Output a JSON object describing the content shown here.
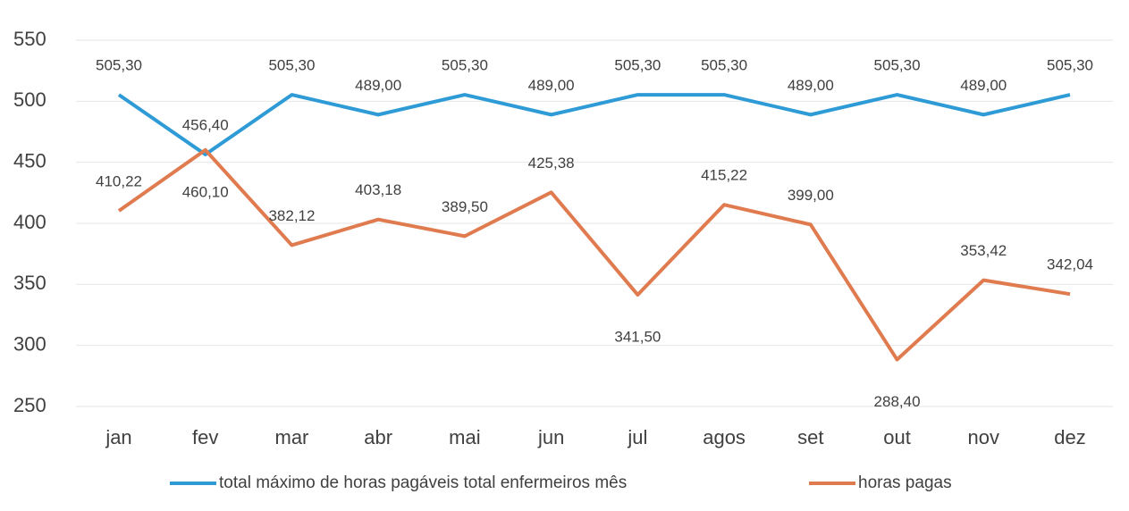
{
  "chart_data": {
    "type": "line",
    "categories": [
      "jan",
      "fev",
      "mar",
      "abr",
      "mai",
      "jun",
      "jul",
      "agos",
      "set",
      "out",
      "nov",
      "dez"
    ],
    "series": [
      {
        "name": "total máximo de horas pagáveis total enfermeiros mês",
        "color": "#2e9bd6",
        "values": [
          505.3,
          456.4,
          505.3,
          489,
          505.3,
          489,
          505.3,
          505.3,
          489,
          505.3,
          489,
          505.3
        ],
        "value_labels": [
          "505,30",
          "456,40",
          "505,30",
          "489,00",
          "505,30",
          "489,00",
          "505,30",
          "505,30",
          "489,00",
          "505,30",
          "489,00",
          "505,30"
        ]
      },
      {
        "name": "horas pagas",
        "color": "#e07b4f",
        "values": [
          410.22,
          460.1,
          382.12,
          403.18,
          389.5,
          425.38,
          341.5,
          415.22,
          399,
          288.4,
          353.42,
          342.04
        ],
        "value_labels": [
          "410,22",
          "460,10",
          "382,12",
          "403,18",
          "389,50",
          "425,38",
          "341,50",
          "415,22",
          "399,00",
          "288,40",
          "353,42",
          "342,04"
        ]
      }
    ],
    "ylim": [
      250,
      550
    ],
    "yticks": [
      250,
      300,
      350,
      400,
      450,
      500,
      550
    ],
    "grid": true
  }
}
